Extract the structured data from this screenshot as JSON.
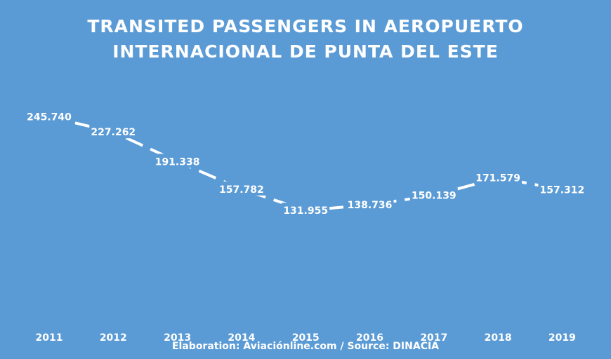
{
  "chart_data": {
    "type": "line",
    "title_lines": [
      "TRANSITED PASSENGERS IN AEROPUERTO",
      "INTERNACIONAL DE PUNTA DEL ESTE"
    ],
    "categories": [
      "2011",
      "2012",
      "2013",
      "2014",
      "2015",
      "2016",
      "2017",
      "2018",
      "2019"
    ],
    "series": [
      {
        "values": [
          245740,
          227262,
          191338,
          157782,
          131955,
          138736,
          150139,
          171579,
          157312
        ]
      }
    ],
    "data_labels": [
      "245.740",
      "227.262",
      "191.338",
      "157.782",
      "131.955",
      "138.736",
      "150.139",
      "171.579",
      "157.312"
    ],
    "xlabel": "",
    "ylabel": "",
    "grid": false,
    "legend": "none",
    "colors": {
      "background": "#5b9bd5",
      "line": "#ffffff",
      "text": "#ffffff"
    }
  },
  "footer": "Elaboration: Aviaciónline.com / Source: DINACIA"
}
